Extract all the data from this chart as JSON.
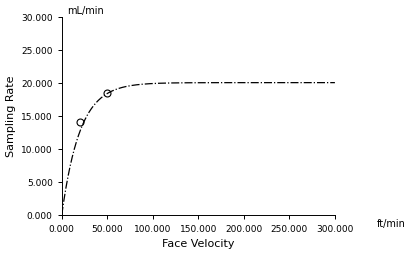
{
  "title": "",
  "xlabel": "Face Velocity",
  "ylabel": "Sampling Rate",
  "unit_top_left": "mL/min",
  "unit_bottom_right": "ft/min",
  "xlim": [
    0,
    300000
  ],
  "ylim": [
    0,
    30000
  ],
  "xticks": [
    0,
    50000,
    100000,
    150000,
    200000,
    250000,
    300000
  ],
  "yticks": [
    0,
    5000,
    10000,
    15000,
    20000,
    25000,
    30000
  ],
  "xtick_labels": [
    "0.000",
    "50.000",
    "100.000",
    "150.000",
    "200.000",
    "250.000",
    "300.000"
  ],
  "ytick_labels": [
    "0.000",
    "5.000",
    "10.000",
    "15.000",
    "20.000",
    "25.000",
    "30.000"
  ],
  "curve_color": "#000000",
  "curve_linestyle": "-.",
  "curve_linewidth": 0.9,
  "data_points_x": [
    20000,
    50000
  ],
  "data_points_y": [
    14000,
    18500
  ],
  "marker_color": "none",
  "marker_edge_color": "#000000",
  "marker_size": 5,
  "background_color": "#ffffff",
  "curve_A": 20000,
  "curve_k": 5e-05,
  "font_size_labels": 8,
  "font_size_ticks": 6.5,
  "font_size_units": 7
}
